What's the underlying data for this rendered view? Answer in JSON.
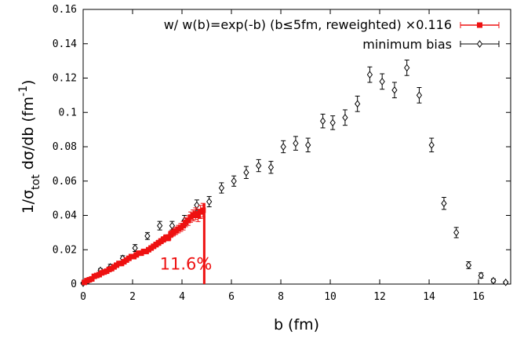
{
  "chart_data": {
    "type": "scatter",
    "title": "",
    "xlabel": "b (fm)",
    "ylabel_parts": {
      "pre": "1/σ",
      "sub": "tot",
      "mid": " dσ/db (fm",
      "sup": "-1",
      "post": ")"
    },
    "xlim": [
      0,
      17.3
    ],
    "ylim": [
      0,
      0.16
    ],
    "xticks": [
      0,
      2,
      4,
      6,
      8,
      10,
      12,
      14,
      16
    ],
    "yticks": [
      0,
      0.02,
      0.04,
      0.06,
      0.08,
      0.1,
      0.12,
      0.14,
      0.16
    ],
    "ytick_labels": [
      "0",
      "0.02",
      "0.04",
      "0.06",
      "0.08",
      "0.1",
      "0.12",
      "0.14",
      "0.16"
    ],
    "grid": false,
    "legend_position": "top-right",
    "series": [
      {
        "name": "w/ w(b)=exp(-b) (b≤5fm, reweighted) ×0.116",
        "color": "#ee1111",
        "marker": "square",
        "x": [
          0.05,
          0.15,
          0.25,
          0.35,
          0.45,
          0.55,
          0.65,
          0.75,
          0.85,
          0.95,
          1.05,
          1.15,
          1.25,
          1.35,
          1.45,
          1.55,
          1.65,
          1.75,
          1.85,
          1.95,
          2.05,
          2.15,
          2.25,
          2.35,
          2.45,
          2.55,
          2.65,
          2.75,
          2.85,
          2.95,
          3.05,
          3.15,
          3.25,
          3.35,
          3.45,
          3.55,
          3.65,
          3.75,
          3.85,
          3.95,
          4.05,
          4.15,
          4.25,
          4.35,
          4.45,
          4.55,
          4.65,
          4.75,
          4.85
        ],
        "y": [
          0.001,
          0.002,
          0.0025,
          0.003,
          0.0045,
          0.005,
          0.0055,
          0.0065,
          0.007,
          0.0075,
          0.0085,
          0.009,
          0.01,
          0.011,
          0.012,
          0.012,
          0.013,
          0.014,
          0.015,
          0.016,
          0.016,
          0.017,
          0.018,
          0.018,
          0.019,
          0.019,
          0.02,
          0.021,
          0.022,
          0.023,
          0.024,
          0.025,
          0.026,
          0.027,
          0.027,
          0.029,
          0.03,
          0.031,
          0.032,
          0.033,
          0.034,
          0.036,
          0.037,
          0.039,
          0.04,
          0.041,
          0.04,
          0.042,
          0.043
        ],
        "err": [
          0.0003,
          0.0004,
          0.0004,
          0.0005,
          0.0005,
          0.0005,
          0.0006,
          0.0006,
          0.0006,
          0.0007,
          0.0007,
          0.0007,
          0.0008,
          0.0008,
          0.0008,
          0.0008,
          0.0009,
          0.0009,
          0.001,
          0.001,
          0.001,
          0.001,
          0.0011,
          0.0011,
          0.0012,
          0.0012,
          0.0012,
          0.0013,
          0.0013,
          0.0014,
          0.0015,
          0.0015,
          0.0016,
          0.0017,
          0.0018,
          0.0019,
          0.002,
          0.0021,
          0.0022,
          0.0023,
          0.0025,
          0.0026,
          0.0028,
          0.003,
          0.0032,
          0.0034,
          0.0036,
          0.0038,
          0.004
        ]
      },
      {
        "name": "minimum bias",
        "color": "#000000",
        "marker": "diamond",
        "x": [
          0.0,
          0.2,
          0.7,
          1.1,
          1.6,
          2.1,
          2.6,
          3.1,
          3.6,
          4.1,
          4.6,
          5.1,
          5.6,
          6.1,
          6.6,
          7.1,
          7.6,
          8.1,
          8.6,
          9.1,
          9.7,
          10.1,
          10.6,
          11.1,
          11.6,
          12.1,
          12.6,
          13.1,
          13.6,
          14.1,
          14.6,
          15.1,
          15.6,
          16.1,
          16.6,
          17.1
        ],
        "y": [
          0.0005,
          0.002,
          0.008,
          0.01,
          0.015,
          0.021,
          0.028,
          0.034,
          0.034,
          0.037,
          0.046,
          0.048,
          0.056,
          0.06,
          0.065,
          0.069,
          0.068,
          0.08,
          0.082,
          0.081,
          0.095,
          0.094,
          0.097,
          0.105,
          0.122,
          0.118,
          0.113,
          0.126,
          0.11,
          0.081,
          0.047,
          0.03,
          0.011,
          0.005,
          0.002,
          0.001
        ],
        "err": [
          0.0005,
          0.001,
          0.001,
          0.0015,
          0.0015,
          0.002,
          0.002,
          0.0025,
          0.0025,
          0.003,
          0.003,
          0.003,
          0.003,
          0.003,
          0.0035,
          0.0035,
          0.0035,
          0.0035,
          0.004,
          0.004,
          0.004,
          0.004,
          0.0045,
          0.0045,
          0.0045,
          0.0045,
          0.0045,
          0.0045,
          0.0045,
          0.004,
          0.0035,
          0.003,
          0.002,
          0.0015,
          0.001,
          0.0005
        ]
      }
    ],
    "annotations": [
      {
        "text": "11.6%",
        "x": 3.1,
        "y": 0.0085,
        "color": "#ee1111"
      }
    ],
    "cut_line": {
      "x": 4.9,
      "y_top": 0.047,
      "color": "#ee1111"
    }
  }
}
